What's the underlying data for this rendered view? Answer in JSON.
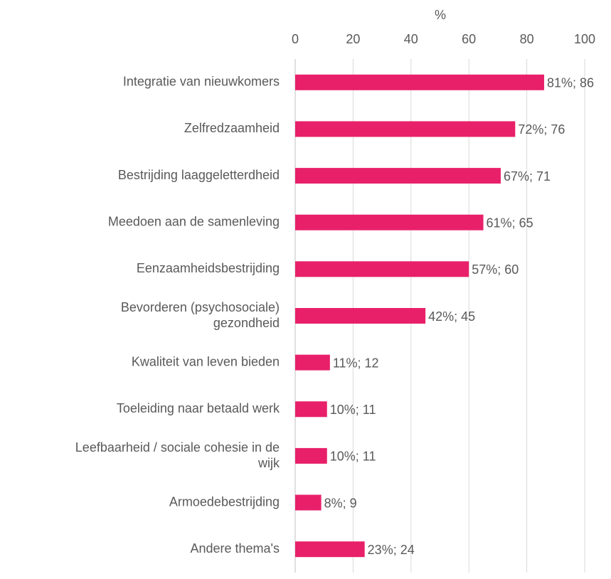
{
  "chart_data": {
    "type": "barh",
    "xlabel": "%",
    "categories": [
      "Integratie van nieuwkomers",
      "Zelfredzaamheid",
      "Bestrijding laaggeletterdheid",
      "Meedoen aan de samenleving",
      "Eenzaamheidsbestrijding",
      "Bevorderen (psychosociale)\ngezondheid",
      "Kwaliteit van leven bieden",
      "Toeleiding naar betaald werk",
      "Leefbaarheid / sociale cohesie in de\nwijk",
      "Armoedebestrijding",
      "Andere thema's"
    ],
    "values": [
      86,
      76,
      71,
      65,
      60,
      45,
      12,
      11,
      11,
      9,
      24
    ],
    "value_labels": [
      "81%; 86",
      "72%; 76",
      "67%; 71",
      "61%; 65",
      "57%; 60",
      "42%; 45",
      "11%; 12",
      "10%; 11",
      "10%; 11",
      "8%; 9",
      "23%; 24"
    ],
    "color": "#e8206a",
    "xlim": [
      0,
      100
    ],
    "xticks": [
      0,
      20,
      40,
      60,
      80,
      100
    ],
    "grid": true
  }
}
